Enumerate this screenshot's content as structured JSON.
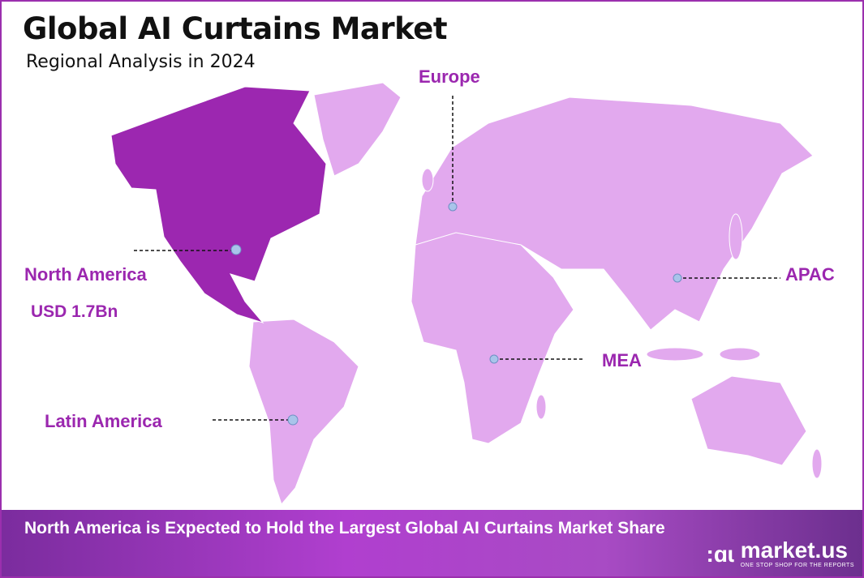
{
  "header": {
    "title": "Global AI Curtains Market",
    "subtitle": "Regional Analysis in 2024"
  },
  "colors": {
    "highlight_region": "#9c27b0",
    "other_regions": "#e2a9ee",
    "label": "#9b27af",
    "border": "#9b2fae",
    "marker": "#a9c4ea"
  },
  "regions": [
    {
      "name": "North America",
      "value": "USD 1.7Bn",
      "highlighted": true
    },
    {
      "name": "Europe"
    },
    {
      "name": "APAC"
    },
    {
      "name": "MEA"
    },
    {
      "name": "Latin America"
    }
  ],
  "banner": {
    "text": "North America is Expected to Hold the Largest Global AI Curtains Market Share"
  },
  "logo": {
    "name": "market.us",
    "tagline": "ONE STOP SHOP FOR THE REPORTS"
  }
}
